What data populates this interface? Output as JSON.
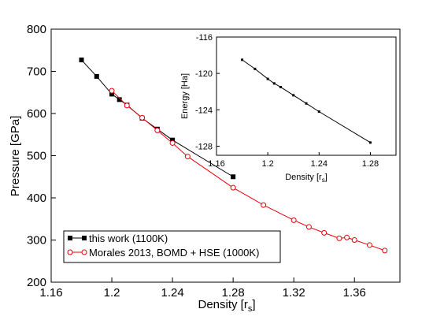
{
  "chart_data": [
    {
      "type": "line",
      "title": "",
      "xlabel": "Density [r",
      "xlabel_sub": "s",
      "xlabel_end": "]",
      "ylabel": "Pressure [GPa]",
      "xlim": [
        1.16,
        1.39
      ],
      "ylim": [
        200,
        800
      ],
      "xticks": [
        "1.16",
        "1.2",
        "1.24",
        "1.28",
        "1.32",
        "1.36"
      ],
      "yticks": [
        "200",
        "300",
        "400",
        "500",
        "600",
        "700",
        "800"
      ],
      "legend_position": "bottom-left",
      "series": [
        {
          "name": "this work (1100K)",
          "color": "#000000",
          "marker": "filled-square",
          "x": [
            1.18,
            1.19,
            1.2,
            1.205,
            1.21,
            1.22,
            1.23,
            1.24,
            1.28
          ],
          "y": [
            727,
            688,
            646,
            633,
            620,
            589,
            563,
            537,
            450
          ]
        },
        {
          "name": "Morales 2013, BOMD + HSE (1000K)",
          "color": "#e8000b",
          "marker": "open-circle",
          "x": [
            1.2,
            1.21,
            1.22,
            1.23,
            1.24,
            1.25,
            1.28,
            1.3,
            1.32,
            1.33,
            1.34,
            1.35,
            1.355,
            1.36,
            1.37,
            1.38
          ],
          "y": [
            654,
            619,
            590,
            560,
            530,
            498,
            424,
            383,
            347,
            331,
            317,
            304,
            306,
            300,
            288,
            275
          ]
        }
      ]
    },
    {
      "type": "line",
      "title": "",
      "xlabel": "Density [r",
      "xlabel_sub": "s",
      "xlabel_end": "]",
      "ylabel": "Energy [Ha]",
      "xlim": [
        1.16,
        1.3
      ],
      "ylim": [
        -129,
        -116
      ],
      "xticks": [
        "1.16",
        "1.2",
        "1.24",
        "1.28"
      ],
      "yticks": [
        "-116",
        "-120",
        "-124",
        "-128"
      ],
      "series": [
        {
          "name": "",
          "color": "#000000",
          "marker": "small-filled-square",
          "x": [
            1.18,
            1.19,
            1.2,
            1.205,
            1.21,
            1.22,
            1.23,
            1.24,
            1.28
          ],
          "y": [
            -118.5,
            -119.5,
            -120.6,
            -121.1,
            -121.5,
            -122.4,
            -123.3,
            -124.2,
            -127.6
          ]
        }
      ]
    }
  ]
}
